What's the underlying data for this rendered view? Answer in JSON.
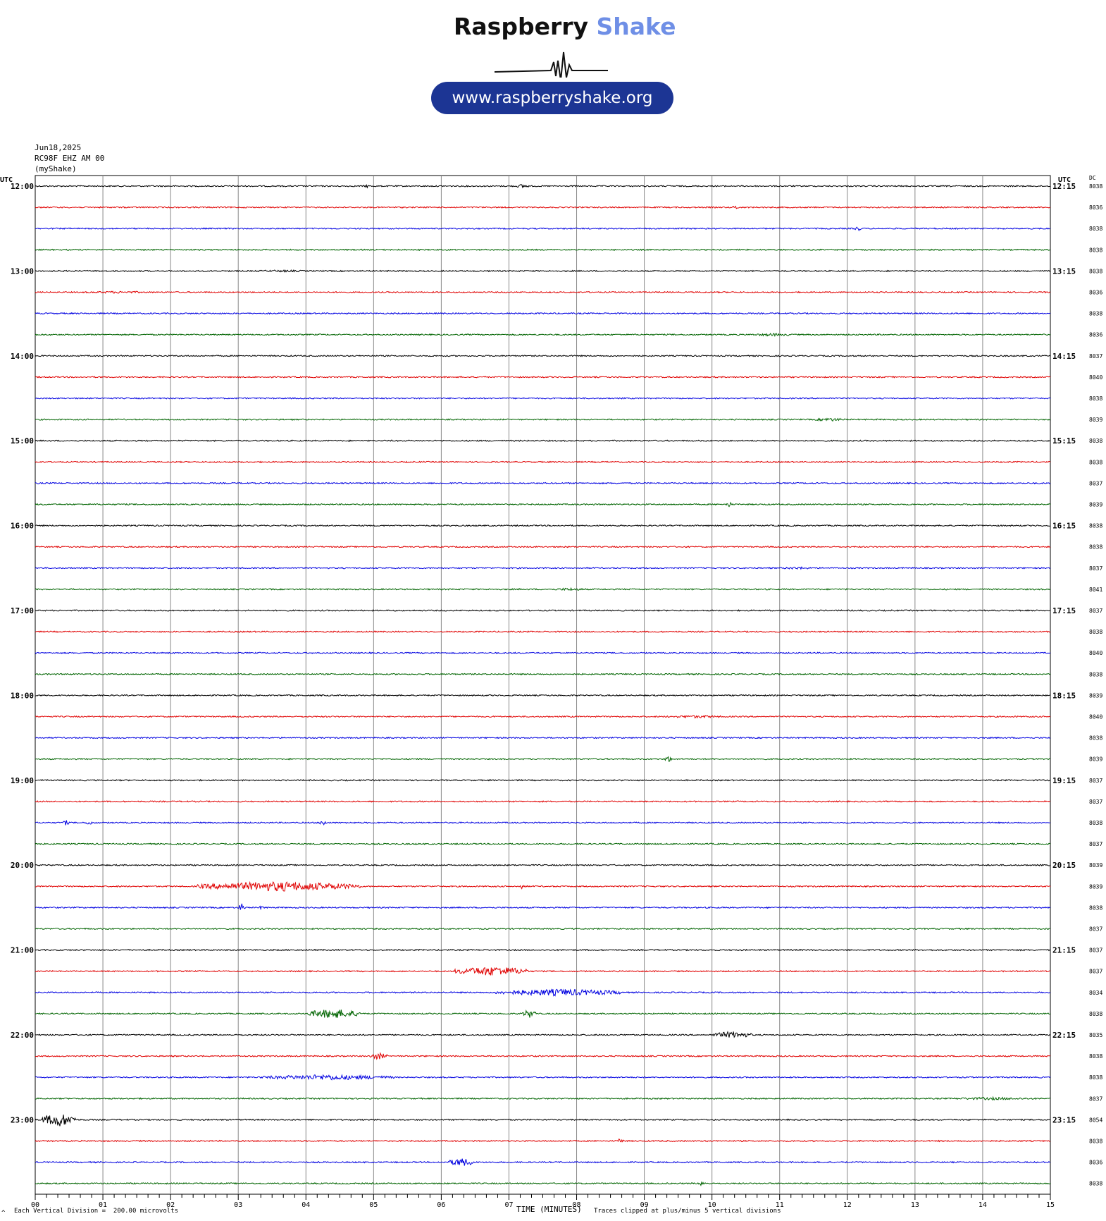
{
  "logo": {
    "word1": "Raspberry",
    "word2": "Shake",
    "url": "www.raspberryshake.org",
    "colors": {
      "dark": "#111111",
      "accent": "#6f8fe6",
      "pill": "#1c3594"
    }
  },
  "header": {
    "date": "Jun18,2025",
    "station": "RC98F EHZ AM 00",
    "network": "(myShake)"
  },
  "footer": {
    "division": "Each Vertical Division =  200.00 microvolts",
    "clip": "Traces clipped at plus/minus 5 vertical divisions",
    "corner_mark": "^"
  },
  "chart_data": {
    "type": "line",
    "title": "",
    "xlabel": "TIME (MINUTES)",
    "xlim": [
      0,
      15
    ],
    "x_ticks": [
      "00",
      "01",
      "02",
      "03",
      "04",
      "05",
      "06",
      "07",
      "08",
      "09",
      "10",
      "11",
      "12",
      "13",
      "14",
      "15"
    ],
    "left_axis_label": "UTC",
    "right_axis_label": "UTC",
    "dc_label": "DC",
    "trace_minutes": 15,
    "colors": [
      "#000000",
      "#e00000",
      "#0000e0",
      "#006400"
    ],
    "hours_left": [
      "12:00",
      "13:00",
      "14:00",
      "15:00",
      "16:00",
      "17:00",
      "18:00",
      "19:00",
      "20:00",
      "21:00",
      "22:00",
      "23:00"
    ],
    "hours_right": [
      "12:15",
      "13:15",
      "14:15",
      "15:15",
      "16:15",
      "17:15",
      "18:15",
      "19:15",
      "20:15",
      "21:15",
      "22:15",
      "23:15"
    ],
    "dc_values": [
      "8038",
      "8036",
      "8038",
      "8038",
      "8038",
      "8036",
      "8038",
      "8036",
      "8037",
      "8040",
      "8038",
      "8039",
      "8038",
      "8038",
      "8037",
      "8039",
      "8038",
      "8038",
      "8037",
      "8041",
      "8037",
      "8038",
      "8040",
      "8038",
      "8039",
      "8040",
      "8038",
      "8039",
      "8037",
      "8037",
      "8038",
      "8037",
      "8039",
      "8039",
      "8038",
      "8037",
      "8037",
      "8037",
      "8034",
      "8038",
      "8035",
      "8038",
      "8038",
      "8037",
      "8054",
      "8038",
      "8036",
      "8038"
    ],
    "events": [
      {
        "trace": 0,
        "start": 4.85,
        "end": 4.95,
        "amp": 2.5
      },
      {
        "trace": 0,
        "start": 7.1,
        "end": 7.3,
        "amp": 3
      },
      {
        "trace": 1,
        "start": 10.3,
        "end": 10.4,
        "amp": 3
      },
      {
        "trace": 2,
        "start": 12.1,
        "end": 12.2,
        "amp": 4
      },
      {
        "trace": 4,
        "start": 3.0,
        "end": 4.3,
        "amp": 1.5
      },
      {
        "trace": 5,
        "start": 0.4,
        "end": 2.0,
        "amp": 1.6
      },
      {
        "trace": 7,
        "start": 10.5,
        "end": 11.3,
        "amp": 2
      },
      {
        "trace": 11,
        "start": 11.5,
        "end": 12.0,
        "amp": 2.5
      },
      {
        "trace": 15,
        "start": 10.2,
        "end": 10.3,
        "amp": 4
      },
      {
        "trace": 18,
        "start": 11.0,
        "end": 11.5,
        "amp": 2
      },
      {
        "trace": 19,
        "start": 7.6,
        "end": 8.2,
        "amp": 2
      },
      {
        "trace": 25,
        "start": 9.2,
        "end": 10.3,
        "amp": 2
      },
      {
        "trace": 27,
        "start": 9.3,
        "end": 9.4,
        "amp": 5
      },
      {
        "trace": 30,
        "start": 0.4,
        "end": 0.5,
        "amp": 4
      },
      {
        "trace": 30,
        "start": 0.75,
        "end": 0.85,
        "amp": 4
      },
      {
        "trace": 30,
        "start": 4.2,
        "end": 4.3,
        "amp": 5
      },
      {
        "trace": 33,
        "start": 2.4,
        "end": 4.8,
        "amp": 7
      },
      {
        "trace": 33,
        "start": 7.15,
        "end": 7.25,
        "amp": 4
      },
      {
        "trace": 34,
        "start": 3.0,
        "end": 3.1,
        "amp": 6
      },
      {
        "trace": 34,
        "start": 3.3,
        "end": 3.4,
        "amp": 3
      },
      {
        "trace": 37,
        "start": 6.2,
        "end": 7.3,
        "amp": 7
      },
      {
        "trace": 38,
        "start": 6.8,
        "end": 8.7,
        "amp": 5
      },
      {
        "trace": 39,
        "start": 4.0,
        "end": 4.8,
        "amp": 7
      },
      {
        "trace": 39,
        "start": 7.2,
        "end": 7.4,
        "amp": 6
      },
      {
        "trace": 40,
        "start": 10.0,
        "end": 10.6,
        "amp": 5
      },
      {
        "trace": 41,
        "start": 4.95,
        "end": 5.2,
        "amp": 5
      },
      {
        "trace": 42,
        "start": 3.3,
        "end": 5.3,
        "amp": 4
      },
      {
        "trace": 43,
        "start": 13.4,
        "end": 14.9,
        "amp": 2
      },
      {
        "trace": 44,
        "start": 0.1,
        "end": 0.6,
        "amp": 10
      },
      {
        "trace": 45,
        "start": 8.6,
        "end": 8.7,
        "amp": 4
      },
      {
        "trace": 46,
        "start": 6.1,
        "end": 6.5,
        "amp": 6
      },
      {
        "trace": 47,
        "start": 9.8,
        "end": 9.9,
        "amp": 4
      }
    ]
  }
}
